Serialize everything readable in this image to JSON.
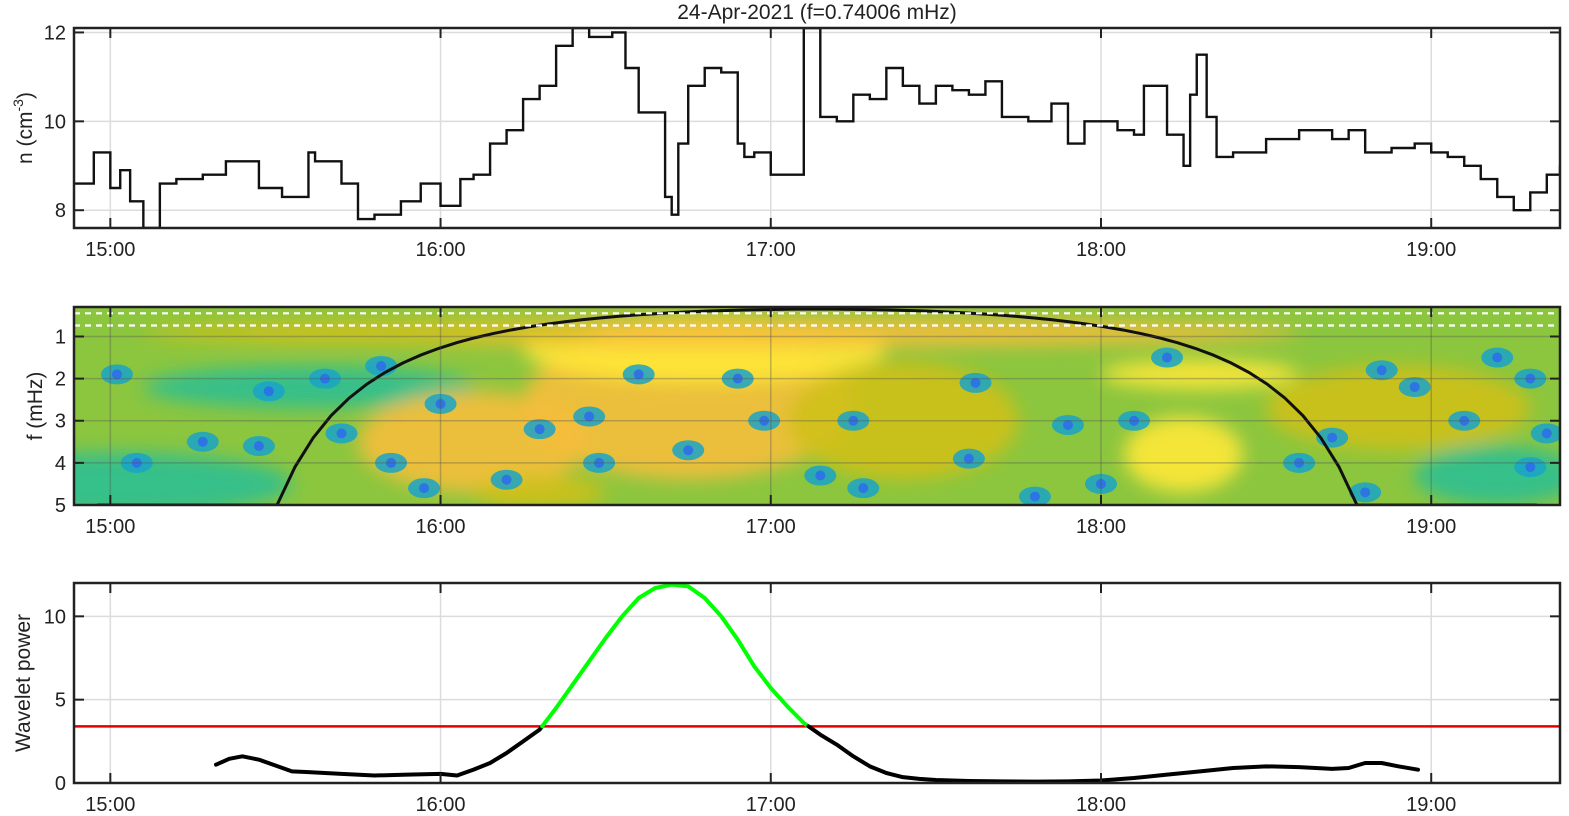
{
  "title": "24-Apr-2021 (f=0.74006 mHz)",
  "chart_data": [
    {
      "type": "line",
      "name": "density",
      "ylabel": "n (cm⁻³)",
      "ylabel_main": "n (cm",
      "ylabel_sup": "-3",
      "ylabel_close": ")",
      "xlim": [
        14.89,
        19.39
      ],
      "ylim": [
        7.6,
        12.1
      ],
      "xticks": [
        15,
        16,
        17,
        18,
        19
      ],
      "xtick_labels": [
        "15:00",
        "16:00",
        "17:00",
        "18:00",
        "19:00"
      ],
      "yticks": [
        8,
        10,
        12
      ],
      "ytick_labels": [
        "8",
        "10",
        "12"
      ],
      "grid": true,
      "x": [
        14.89,
        14.95,
        15.0,
        15.03,
        15.06,
        15.1,
        15.15,
        15.2,
        15.28,
        15.35,
        15.45,
        15.52,
        15.6,
        15.62,
        15.7,
        15.75,
        15.8,
        15.88,
        15.94,
        16.0,
        16.06,
        16.1,
        16.15,
        16.2,
        16.25,
        16.3,
        16.35,
        16.4,
        16.45,
        16.52,
        16.56,
        16.6,
        16.65,
        16.68,
        16.7,
        16.72,
        16.75,
        16.8,
        16.85,
        16.9,
        16.92,
        16.95,
        17.0,
        17.08,
        17.1,
        17.15,
        17.2,
        17.25,
        17.3,
        17.35,
        17.4,
        17.45,
        17.5,
        17.55,
        17.6,
        17.65,
        17.7,
        17.78,
        17.85,
        17.9,
        17.95,
        18.0,
        18.05,
        18.1,
        18.13,
        18.2,
        18.25,
        18.27,
        18.29,
        18.32,
        18.35,
        18.4,
        18.5,
        18.6,
        18.7,
        18.75,
        18.8,
        18.88,
        18.95,
        19.0,
        19.05,
        19.1,
        19.15,
        19.2,
        19.25,
        19.3,
        19.35,
        19.39
      ],
      "y": [
        8.6,
        9.3,
        8.5,
        8.9,
        8.2,
        7.6,
        8.6,
        8.7,
        8.8,
        9.1,
        8.5,
        8.3,
        9.3,
        9.1,
        8.6,
        7.8,
        7.9,
        8.2,
        8.6,
        8.1,
        8.7,
        8.8,
        9.5,
        9.8,
        10.5,
        10.8,
        11.7,
        12.1,
        11.9,
        12.0,
        11.2,
        10.2,
        10.2,
        8.3,
        7.9,
        9.5,
        10.8,
        11.2,
        11.1,
        9.5,
        9.2,
        9.3,
        8.8,
        8.8,
        12.1,
        10.1,
        10.0,
        10.6,
        10.5,
        11.2,
        10.8,
        10.4,
        10.8,
        10.7,
        10.6,
        10.9,
        10.1,
        10.0,
        10.4,
        9.5,
        10.0,
        10.0,
        9.8,
        9.7,
        10.8,
        9.7,
        9.0,
        10.6,
        11.5,
        10.1,
        9.2,
        9.3,
        9.6,
        9.8,
        9.6,
        9.8,
        9.3,
        9.4,
        9.5,
        9.3,
        9.2,
        9.0,
        8.7,
        8.3,
        8.0,
        8.4,
        8.8,
        9.0
      ]
    },
    {
      "type": "heatmap",
      "name": "wavelet-spectrum",
      "ylabel": "f (mHz)",
      "xlim": [
        14.89,
        19.39
      ],
      "ylim": [
        0.3,
        5
      ],
      "xticks": [
        15,
        16,
        17,
        18,
        19
      ],
      "xtick_labels": [
        "15:00",
        "16:00",
        "17:00",
        "18:00",
        "19:00"
      ],
      "yticks": [
        1,
        2,
        3,
        4,
        5
      ],
      "ytick_labels": [
        "1",
        "2",
        "3",
        "4",
        "5"
      ],
      "grid": true,
      "band_f": [
        0.45,
        0.74
      ],
      "colors": [
        "#1aa3c8",
        "#2cbf92",
        "#7fc84a",
        "#cfc01b",
        "#f5be3b",
        "#ffe838",
        "#2e6fe8"
      ]
    },
    {
      "type": "line",
      "name": "wavelet-power",
      "ylabel": "Wavelet power",
      "xlim": [
        14.89,
        19.39
      ],
      "ylim": [
        0,
        12
      ],
      "xticks": [
        15,
        16,
        17,
        18,
        19
      ],
      "xtick_labels": [
        "15:00",
        "16:00",
        "17:00",
        "18:00",
        "19:00"
      ],
      "yticks": [
        0,
        5,
        10
      ],
      "ytick_labels": [
        "0",
        "5",
        "10"
      ],
      "grid": true,
      "threshold": 3.4,
      "threshold_color": "#e00000",
      "above_color": "#00ff00",
      "below_color": "#000000",
      "x": [
        15.32,
        15.36,
        15.4,
        15.45,
        15.5,
        15.55,
        15.6,
        15.7,
        15.8,
        15.9,
        16.0,
        16.05,
        16.1,
        16.15,
        16.2,
        16.25,
        16.3,
        16.35,
        16.4,
        16.45,
        16.5,
        16.55,
        16.6,
        16.65,
        16.7,
        16.75,
        16.8,
        16.85,
        16.9,
        16.95,
        17.0,
        17.05,
        17.1,
        17.15,
        17.2,
        17.25,
        17.3,
        17.35,
        17.4,
        17.45,
        17.5,
        17.6,
        17.7,
        17.8,
        17.9,
        18.0,
        18.1,
        18.2,
        18.3,
        18.4,
        18.5,
        18.6,
        18.7,
        18.75,
        18.8,
        18.85,
        18.9,
        18.96
      ],
      "y": [
        1.1,
        1.45,
        1.6,
        1.4,
        1.05,
        0.7,
        0.65,
        0.55,
        0.45,
        0.5,
        0.55,
        0.45,
        0.8,
        1.2,
        1.8,
        2.5,
        3.2,
        4.5,
        5.9,
        7.3,
        8.7,
        10.0,
        11.1,
        11.7,
        11.9,
        11.8,
        11.1,
        10.0,
        8.6,
        7.0,
        5.7,
        4.6,
        3.6,
        2.9,
        2.3,
        1.6,
        1.0,
        0.6,
        0.35,
        0.25,
        0.18,
        0.12,
        0.1,
        0.08,
        0.1,
        0.15,
        0.3,
        0.5,
        0.7,
        0.9,
        1.0,
        0.95,
        0.85,
        0.9,
        1.2,
        1.2,
        1.0,
        0.8
      ]
    }
  ]
}
